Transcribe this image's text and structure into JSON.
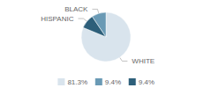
{
  "chart_data": {
    "type": "pie",
    "categories": [
      "WHITE",
      "HISPANIC",
      "BLACK"
    ],
    "values": [
      81.3,
      9.4,
      9.4
    ],
    "colors": [
      "#d9e4ed",
      "#2d5f7a",
      "#6a9ab5"
    ],
    "legend": "bottom",
    "legend_labels": [
      "81.3%",
      "9.4%",
      "9.4%"
    ],
    "legend_colors": [
      "#d9e4ed",
      "#6a9ab5",
      "#2d5f7a"
    ]
  }
}
